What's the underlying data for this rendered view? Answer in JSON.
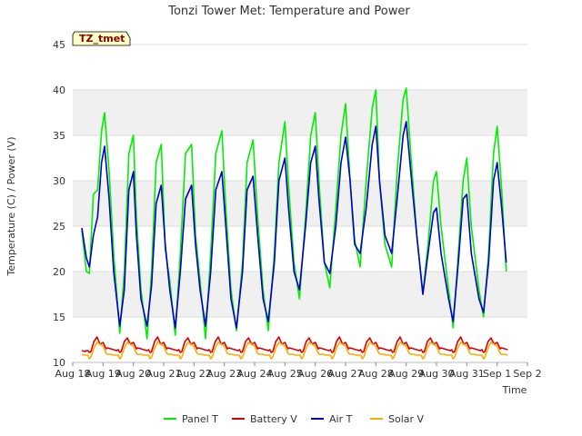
{
  "chart_data": {
    "type": "line",
    "title": "Tonzi Tower Met: Temperature and Power",
    "xlabel": "Time",
    "ylabel": "Temperature (C) / Power (V)",
    "badge": "TZ_tmet",
    "ylim": [
      10,
      45
    ],
    "yticks": [
      10,
      15,
      20,
      25,
      30,
      35,
      40,
      45
    ],
    "xlim": [
      0,
      15
    ],
    "xticks": [
      {
        "value": 0,
        "label": "Aug 18"
      },
      {
        "value": 1,
        "label": "Aug 19"
      },
      {
        "value": 2,
        "label": "Aug 20"
      },
      {
        "value": 3,
        "label": "Aug 21"
      },
      {
        "value": 4,
        "label": "Aug 22"
      },
      {
        "value": 5,
        "label": "Aug 23"
      },
      {
        "value": 6,
        "label": "Aug 24"
      },
      {
        "value": 7,
        "label": "Aug 25"
      },
      {
        "value": 8,
        "label": "Aug 26"
      },
      {
        "value": 9,
        "label": "Aug 27"
      },
      {
        "value": 10,
        "label": "Aug 28"
      },
      {
        "value": 11,
        "label": "Aug 29"
      },
      {
        "value": 12,
        "label": "Aug 30"
      },
      {
        "value": 13,
        "label": "Aug 31"
      },
      {
        "value": 14,
        "label": "Sep 1"
      },
      {
        "value": 15,
        "label": "Sep 2"
      }
    ],
    "background_bands": true,
    "series": [
      {
        "name": "Panel T",
        "color": "#00ee00",
        "x": [
          0.3,
          0.45,
          0.55,
          0.68,
          0.82,
          0.95,
          1.05,
          1.2,
          1.35,
          1.55,
          1.7,
          1.85,
          2.0,
          2.1,
          2.25,
          2.45,
          2.6,
          2.75,
          2.92,
          3.05,
          3.2,
          3.38,
          3.55,
          3.72,
          3.92,
          4.05,
          4.2,
          4.38,
          4.55,
          4.72,
          4.92,
          5.05,
          5.22,
          5.4,
          5.6,
          5.75,
          5.95,
          6.1,
          6.28,
          6.45,
          6.65,
          6.8,
          7.0,
          7.12,
          7.3,
          7.48,
          7.68,
          7.85,
          8.0,
          8.12,
          8.3,
          8.48,
          8.68,
          8.85,
          9.0,
          9.15,
          9.3,
          9.48,
          9.68,
          9.88,
          10.0,
          10.12,
          10.3,
          10.52,
          10.7,
          10.9,
          11.0,
          11.15,
          11.35,
          11.55,
          11.72,
          11.9,
          12.0,
          12.15,
          12.4,
          12.55,
          12.72,
          12.88,
          13.0,
          13.15,
          13.4,
          13.55,
          13.72,
          13.88,
          14.0,
          14.15,
          14.3
        ],
        "values": [
          24.5,
          20.0,
          19.8,
          28.5,
          29.0,
          35.5,
          37.5,
          31.0,
          22.0,
          13.2,
          20.0,
          33.0,
          35.0,
          26.0,
          18.0,
          12.6,
          20.0,
          32.0,
          34.0,
          22.5,
          19.0,
          13.0,
          22.0,
          33.0,
          34.0,
          24.0,
          19.0,
          12.6,
          22.0,
          33.0,
          35.5,
          27.0,
          18.0,
          13.5,
          21.0,
          32.0,
          34.5,
          26.0,
          18.0,
          13.5,
          22.0,
          32.0,
          36.5,
          29.5,
          21.0,
          17.0,
          26.0,
          35.0,
          37.5,
          30.0,
          21.0,
          18.2,
          27.0,
          35.0,
          38.5,
          30.0,
          23.5,
          20.5,
          30.0,
          38.0,
          40.0,
          30.0,
          23.0,
          20.5,
          31.0,
          39.0,
          40.2,
          33.0,
          24.0,
          17.5,
          23.0,
          30.0,
          31.0,
          25.0,
          18.0,
          13.8,
          22.0,
          30.0,
          32.5,
          25.0,
          18.0,
          15.0,
          22.0,
          33.0,
          36.0,
          29.0,
          20.0
        ]
      },
      {
        "name": "Battery V",
        "color": "#dd0000",
        "x": [
          0.3,
          0.4,
          0.45,
          0.5,
          0.55,
          0.6,
          0.7,
          0.8,
          0.9,
          1.0,
          1.1,
          1.15,
          1.25,
          1.35,
          1.45,
          1.5,
          1.55,
          1.6,
          1.7,
          1.8,
          1.9,
          2.0,
          2.1,
          2.15,
          2.25,
          2.35,
          2.45,
          2.5,
          2.55,
          2.6,
          2.7,
          2.8,
          2.9,
          3.0,
          3.1,
          3.15,
          3.25,
          3.35,
          3.45,
          3.5,
          3.55,
          3.6,
          3.7,
          3.8,
          3.9,
          4.0,
          4.1,
          4.15,
          4.25,
          4.35,
          4.45,
          4.5,
          4.55,
          4.6,
          4.7,
          4.8,
          4.9,
          5.0,
          5.1,
          5.15,
          5.25,
          5.35,
          5.45,
          5.5,
          5.55,
          5.6,
          5.7,
          5.8,
          5.9,
          6.0,
          6.1,
          6.15,
          6.25,
          6.35,
          6.45,
          6.5,
          6.55,
          6.6,
          6.7,
          6.8,
          6.9,
          7.0,
          7.1,
          7.15,
          7.25,
          7.35,
          7.45,
          7.5,
          7.55,
          7.6,
          7.7,
          7.8,
          7.9,
          8.0,
          8.1,
          8.15,
          8.25,
          8.35,
          8.45,
          8.5,
          8.55,
          8.6,
          8.7,
          8.8,
          8.9,
          9.0,
          9.1,
          9.15,
          9.25,
          9.35,
          9.45,
          9.5,
          9.55,
          9.6,
          9.7,
          9.8,
          9.9,
          10.0,
          10.1,
          10.15,
          10.25,
          10.35,
          10.45,
          10.5,
          10.55,
          10.6,
          10.7,
          10.8,
          10.9,
          11.0,
          11.1,
          11.15,
          11.25,
          11.35,
          11.45,
          11.5,
          11.55,
          11.6,
          11.7,
          11.8,
          11.9,
          12.0,
          12.1,
          12.15,
          12.25,
          12.35,
          12.45,
          12.5,
          12.55,
          12.6,
          12.7,
          12.8,
          12.9,
          13.0,
          13.1,
          13.15,
          13.25,
          13.35,
          13.45,
          13.5,
          13.55,
          13.6,
          13.7,
          13.8,
          13.9,
          14.0,
          14.1,
          14.15,
          14.25,
          14.35
        ],
        "values": [
          11.3,
          11.2,
          11.3,
          11.3,
          11.1,
          11.2,
          12.3,
          12.8,
          12.0,
          12.2,
          11.5,
          11.6,
          11.5,
          11.4,
          11.3,
          11.4,
          11.1,
          11.2,
          12.3,
          12.7,
          12.0,
          12.2,
          11.5,
          11.6,
          11.5,
          11.4,
          11.3,
          11.4,
          11.1,
          11.2,
          12.3,
          12.8,
          12.0,
          12.2,
          11.5,
          11.6,
          11.5,
          11.4,
          11.3,
          11.4,
          11.1,
          11.2,
          12.3,
          12.7,
          12.0,
          12.2,
          11.5,
          11.6,
          11.5,
          11.4,
          11.3,
          11.4,
          11.1,
          11.2,
          12.3,
          12.8,
          12.0,
          12.2,
          11.5,
          11.6,
          11.5,
          11.4,
          11.3,
          11.4,
          11.1,
          11.2,
          12.3,
          12.7,
          12.0,
          12.2,
          11.5,
          11.6,
          11.5,
          11.4,
          11.3,
          11.4,
          11.1,
          11.2,
          12.3,
          12.8,
          12.0,
          12.2,
          11.5,
          11.6,
          11.5,
          11.4,
          11.3,
          11.4,
          11.1,
          11.2,
          12.3,
          12.7,
          12.0,
          12.2,
          11.5,
          11.6,
          11.5,
          11.4,
          11.3,
          11.4,
          11.1,
          11.2,
          12.3,
          12.8,
          12.0,
          12.2,
          11.5,
          11.6,
          11.5,
          11.4,
          11.3,
          11.4,
          11.1,
          11.2,
          12.3,
          12.7,
          12.0,
          12.2,
          11.5,
          11.6,
          11.5,
          11.4,
          11.3,
          11.4,
          11.1,
          11.2,
          12.3,
          12.8,
          12.0,
          12.2,
          11.5,
          11.6,
          11.5,
          11.4,
          11.3,
          11.4,
          11.1,
          11.2,
          12.3,
          12.7,
          12.0,
          12.2,
          11.5,
          11.6,
          11.5,
          11.4,
          11.3,
          11.4,
          11.1,
          11.2,
          12.3,
          12.8,
          12.0,
          12.2,
          11.5,
          11.6,
          11.5,
          11.4,
          11.3,
          11.4,
          11.1,
          11.2,
          12.3,
          12.7,
          12.0,
          12.2,
          11.5,
          11.6,
          11.5,
          11.4
        ]
      },
      {
        "name": "Air T",
        "color": "#0000cc",
        "x": [
          0.3,
          0.45,
          0.55,
          0.68,
          0.82,
          0.95,
          1.05,
          1.2,
          1.35,
          1.55,
          1.7,
          1.85,
          2.0,
          2.1,
          2.25,
          2.45,
          2.6,
          2.75,
          2.92,
          3.05,
          3.2,
          3.38,
          3.55,
          3.72,
          3.92,
          4.05,
          4.2,
          4.38,
          4.55,
          4.72,
          4.92,
          5.05,
          5.22,
          5.4,
          5.6,
          5.75,
          5.95,
          6.1,
          6.28,
          6.45,
          6.65,
          6.8,
          7.0,
          7.12,
          7.3,
          7.48,
          7.68,
          7.85,
          8.0,
          8.12,
          8.3,
          8.48,
          8.68,
          8.85,
          9.0,
          9.15,
          9.3,
          9.48,
          9.68,
          9.88,
          10.0,
          10.12,
          10.3,
          10.52,
          10.7,
          10.9,
          11.0,
          11.15,
          11.35,
          11.55,
          11.72,
          11.9,
          12.0,
          12.15,
          12.4,
          12.55,
          12.72,
          12.88,
          13.0,
          13.15,
          13.4,
          13.55,
          13.72,
          13.88,
          14.0,
          14.15,
          14.3
        ],
        "values": [
          24.8,
          21.5,
          20.5,
          24.0,
          26.0,
          32.0,
          33.8,
          28.0,
          20.0,
          14.0,
          18.0,
          29.0,
          31.0,
          24.0,
          17.0,
          14.0,
          18.5,
          27.5,
          29.5,
          23.0,
          18.0,
          13.8,
          20.0,
          28.0,
          29.5,
          23.0,
          18.0,
          14.0,
          20.0,
          29.0,
          31.0,
          25.0,
          17.0,
          13.8,
          20.0,
          29.0,
          30.5,
          24.0,
          17.0,
          14.5,
          21.0,
          30.0,
          32.5,
          27.0,
          20.0,
          18.0,
          25.0,
          32.0,
          33.8,
          28.0,
          21.0,
          19.8,
          25.0,
          32.0,
          34.8,
          30.0,
          23.0,
          22.0,
          27.0,
          34.0,
          36.0,
          30.0,
          24.0,
          22.0,
          28.0,
          35.0,
          36.5,
          31.0,
          24.0,
          17.5,
          22.0,
          26.5,
          27.0,
          22.0,
          17.0,
          14.5,
          21.0,
          28.0,
          28.5,
          22.0,
          17.0,
          15.5,
          21.0,
          30.0,
          32.0,
          27.0,
          21.0
        ]
      },
      {
        "name": "Solar V",
        "color": "#ffaa00",
        "x": [
          0.3,
          0.4,
          0.5,
          0.55,
          0.6,
          0.7,
          0.8,
          0.9,
          1.0,
          1.1,
          1.15,
          1.25,
          1.35,
          1.45,
          1.5,
          1.55,
          1.6,
          1.7,
          1.8,
          1.9,
          2.0,
          2.1,
          2.15,
          2.25,
          2.35,
          2.45,
          2.5,
          2.55,
          2.6,
          2.7,
          2.8,
          2.9,
          3.0,
          3.1,
          3.15,
          3.25,
          3.35,
          3.45,
          3.5,
          3.55,
          3.6,
          3.7,
          3.8,
          3.9,
          4.0,
          4.1,
          4.15,
          4.25,
          4.35,
          4.45,
          4.5,
          4.55,
          4.6,
          4.7,
          4.8,
          4.9,
          5.0,
          5.1,
          5.15,
          5.25,
          5.35,
          5.45,
          5.5,
          5.55,
          5.6,
          5.7,
          5.8,
          5.9,
          6.0,
          6.1,
          6.15,
          6.25,
          6.35,
          6.45,
          6.5,
          6.55,
          6.6,
          6.7,
          6.8,
          6.9,
          7.0,
          7.1,
          7.15,
          7.25,
          7.35,
          7.45,
          7.5,
          7.55,
          7.6,
          7.7,
          7.8,
          7.9,
          8.0,
          8.1,
          8.15,
          8.25,
          8.35,
          8.45,
          8.5,
          8.55,
          8.6,
          8.7,
          8.8,
          8.9,
          9.0,
          9.1,
          9.15,
          9.25,
          9.35,
          9.45,
          9.5,
          9.55,
          9.6,
          9.7,
          9.8,
          9.9,
          10.0,
          10.1,
          10.15,
          10.25,
          10.35,
          10.45,
          10.5,
          10.55,
          10.6,
          10.7,
          10.8,
          10.9,
          11.0,
          11.1,
          11.15,
          11.25,
          11.35,
          11.45,
          11.5,
          11.55,
          11.6,
          11.7,
          11.8,
          11.9,
          12.0,
          12.1,
          12.15,
          12.25,
          12.35,
          12.45,
          12.5,
          12.55,
          12.6,
          12.7,
          12.8,
          12.9,
          13.0,
          13.1,
          13.15,
          13.25,
          13.35,
          13.45,
          13.5,
          13.55,
          13.6,
          13.7,
          13.8,
          13.9,
          14.0,
          14.1,
          14.15,
          14.25,
          14.35
        ],
        "values": [
          10.9,
          10.8,
          10.8,
          10.4,
          10.6,
          11.6,
          12.2,
          12.0,
          11.8,
          11.0,
          10.9,
          10.9,
          10.8,
          10.8,
          10.8,
          10.4,
          10.6,
          11.6,
          12.2,
          12.0,
          11.8,
          11.0,
          10.9,
          10.9,
          10.8,
          10.8,
          10.8,
          10.4,
          10.6,
          11.6,
          12.2,
          12.0,
          11.8,
          11.0,
          10.9,
          10.9,
          10.8,
          10.8,
          10.8,
          10.4,
          10.6,
          11.6,
          12.2,
          12.0,
          11.8,
          11.0,
          10.9,
          10.9,
          10.8,
          10.8,
          10.8,
          10.4,
          10.6,
          11.6,
          12.2,
          12.0,
          11.8,
          11.0,
          10.9,
          10.9,
          10.8,
          10.8,
          10.8,
          10.4,
          10.6,
          11.6,
          12.2,
          12.0,
          11.8,
          11.0,
          10.9,
          10.9,
          10.8,
          10.8,
          10.8,
          10.4,
          10.6,
          11.6,
          12.2,
          12.0,
          11.8,
          11.0,
          10.9,
          10.9,
          10.8,
          10.8,
          10.8,
          10.4,
          10.6,
          11.6,
          12.2,
          12.0,
          11.8,
          11.0,
          10.9,
          10.9,
          10.8,
          10.8,
          10.8,
          10.4,
          10.6,
          11.6,
          12.2,
          12.0,
          11.8,
          11.0,
          10.9,
          10.9,
          10.8,
          10.8,
          10.8,
          10.4,
          10.6,
          11.6,
          12.2,
          12.0,
          11.8,
          11.0,
          10.9,
          10.9,
          10.8,
          10.8,
          10.8,
          10.4,
          10.6,
          11.6,
          12.2,
          12.0,
          11.8,
          11.0,
          10.9,
          10.9,
          10.8,
          10.8,
          10.8,
          10.4,
          10.6,
          11.6,
          12.2,
          12.0,
          11.8,
          11.0,
          10.9,
          10.9,
          10.8,
          10.8,
          10.8,
          10.4,
          10.6,
          11.6,
          12.2,
          12.0,
          11.8,
          11.0,
          10.9,
          10.9,
          10.8,
          10.8,
          10.8,
          10.4,
          10.6,
          11.6,
          12.2,
          12.0,
          11.8,
          11.0,
          10.9,
          10.9,
          10.8
        ]
      }
    ]
  }
}
